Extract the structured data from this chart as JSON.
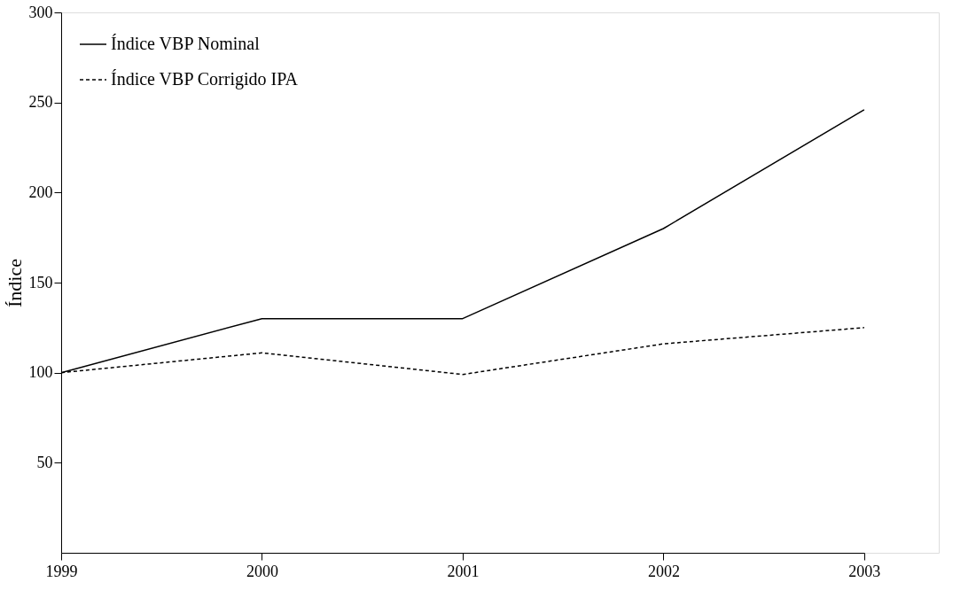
{
  "chart_data": {
    "type": "line",
    "ylabel": "Índice",
    "categories": [
      "1999",
      "2000",
      "2001",
      "2002",
      "2003"
    ],
    "series": [
      {
        "name": "Índice VBP Nominal",
        "color": "#000000",
        "line_style": "solid",
        "values": [
          100,
          130,
          130,
          180,
          246
        ]
      },
      {
        "name": "Índice VBP Corrigido IPA",
        "color": "#000000",
        "line_style": "dashed",
        "values": [
          100,
          111,
          99,
          116,
          125
        ]
      }
    ],
    "ylim": [
      0,
      300
    ],
    "yticks": [
      50,
      100,
      150,
      200,
      250,
      300
    ],
    "grid": false,
    "legend": "top left",
    "marker": "none"
  }
}
